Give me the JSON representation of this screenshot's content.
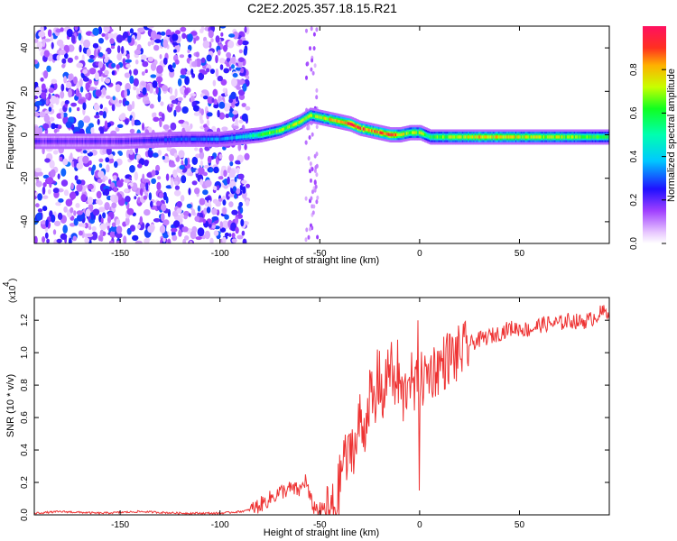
{
  "title": "C2E2.2025.357.18.15.R21",
  "chart_data": [
    {
      "type": "heatmap",
      "id": "spectrogram",
      "title": "C2E2.2025.357.18.15.R21",
      "xlabel": "Height of straight line (km)",
      "ylabel": "Frequency (Hz)",
      "xlim": [
        -193,
        95
      ],
      "ylim": [
        -50,
        50
      ],
      "xticks": [
        -150,
        -100,
        -50,
        0,
        50
      ],
      "yticks": [
        -40,
        -20,
        0,
        20,
        40
      ],
      "colorbar": {
        "label": "Normalized spectral amplitude",
        "range": [
          0.0,
          1.0
        ],
        "ticks": [
          0.0,
          0.2,
          0.4,
          0.6,
          0.8
        ],
        "colors": [
          "#ffffff",
          "#e0b8ff",
          "#8a2be2",
          "#2020ff",
          "#00c8ff",
          "#00ff60",
          "#c8ff00",
          "#ffa000",
          "#ff1010"
        ]
      },
      "noise_region_x": [
        -193,
        -86
      ],
      "ridge": {
        "x": [
          -193,
          -150,
          -120,
          -100,
          -90,
          -80,
          -70,
          -60,
          -55,
          -50,
          -45,
          -40,
          -35,
          -30,
          -25,
          -20,
          -15,
          -10,
          -5,
          0,
          5,
          10,
          30,
          50,
          70,
          95
        ],
        "frequency": [
          -3,
          -3,
          -2,
          -2,
          -1,
          0,
          2,
          6,
          9,
          8,
          7,
          6,
          5,
          3,
          2,
          1,
          0,
          0,
          1,
          1,
          -1,
          -1,
          -1,
          -1,
          -1,
          -1
        ],
        "amplitude": [
          0.2,
          0.2,
          0.3,
          0.35,
          0.4,
          0.6,
          0.7,
          0.75,
          0.7,
          0.7,
          0.8,
          0.85,
          0.9,
          0.9,
          0.85,
          0.85,
          0.9,
          0.75,
          0.7,
          0.7,
          0.6,
          0.65,
          0.8,
          0.75,
          0.7,
          0.6
        ]
      }
    },
    {
      "type": "line",
      "id": "snr",
      "xlabel": "Height of straight line (km)",
      "ylabel": "SNR (10 * v/v)",
      "yscale_label": "(x10",
      "yscale_exp": "4",
      "xlim": [
        -193,
        95
      ],
      "ylim": [
        0.0,
        1.34
      ],
      "xticks": [
        -150,
        -100,
        -50,
        0,
        50
      ],
      "yticks": [
        0.0,
        0.2,
        0.4,
        0.6,
        0.8,
        1.0,
        1.2
      ],
      "ytick_labels": [
        "0.0",
        "0.2",
        "0.4",
        "0.6",
        "0.8",
        "1.0",
        "1.2"
      ],
      "color": "#ee3333",
      "series": [
        {
          "name": "SNR",
          "x": [
            -193,
            -180,
            -160,
            -140,
            -120,
            -100,
            -90,
            -85,
            -80,
            -75,
            -70,
            -65,
            -60,
            -57,
            -55,
            -53,
            -50,
            -47,
            -45,
            -42,
            -40,
            -38,
            -36,
            -34,
            -32,
            -30,
            -28,
            -25,
            -22,
            -20,
            -18,
            -15,
            -12,
            -10,
            -8,
            -5,
            -3,
            0,
            3,
            5,
            8,
            10,
            13,
            15,
            18,
            20,
            23,
            25,
            28,
            30,
            35,
            40,
            45,
            50,
            55,
            60,
            65,
            70,
            75,
            80,
            85,
            90,
            95
          ],
          "y": [
            0.01,
            0.02,
            0.01,
            0.02,
            0.01,
            0.01,
            0.02,
            0.03,
            0.06,
            0.1,
            0.14,
            0.16,
            0.15,
            0.22,
            0.1,
            0.05,
            0.03,
            0.02,
            0.02,
            0.05,
            0.2,
            0.35,
            0.32,
            0.45,
            0.4,
            0.6,
            0.5,
            0.75,
            0.62,
            0.85,
            0.7,
            0.95,
            0.75,
            0.8,
            0.7,
            0.9,
            0.75,
            0.82,
            0.85,
            0.88,
            0.9,
            0.92,
            0.95,
            0.98,
            0.97,
            1.0,
            1.02,
            1.05,
            1.07,
            1.08,
            1.1,
            1.12,
            1.15,
            1.15,
            1.14,
            1.17,
            1.18,
            1.18,
            1.2,
            1.19,
            1.2,
            1.24,
            1.26
          ]
        }
      ],
      "spikes": [
        {
          "x": -38,
          "y": 0.46
        },
        {
          "x": -21,
          "y": 1.02
        },
        {
          "x": -16,
          "y": 1.02
        },
        {
          "x": -11,
          "y": 1.08
        },
        {
          "x": -1,
          "y": 1.2
        },
        {
          "x": 0,
          "y": 0.15
        }
      ]
    }
  ]
}
